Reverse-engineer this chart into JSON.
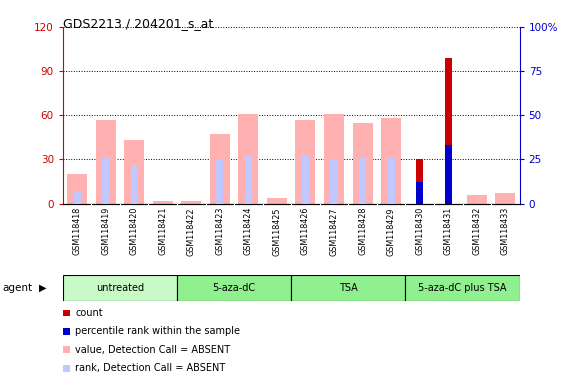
{
  "title": "GDS2213 / 204201_s_at",
  "samples": [
    "GSM118418",
    "GSM118419",
    "GSM118420",
    "GSM118421",
    "GSM118422",
    "GSM118423",
    "GSM118424",
    "GSM118425",
    "GSM118426",
    "GSM118427",
    "GSM118428",
    "GSM118429",
    "GSM118430",
    "GSM118431",
    "GSM118432",
    "GSM118433"
  ],
  "group_data": [
    {
      "name": "untreated",
      "start": 0,
      "end": 4,
      "color": "#c8fac8"
    },
    {
      "name": "5-aza-dC",
      "start": 4,
      "end": 8,
      "color": "#90f090"
    },
    {
      "name": "TSA",
      "start": 8,
      "end": 12,
      "color": "#90f090"
    },
    {
      "name": "5-aza-dC plus TSA",
      "start": 12,
      "end": 16,
      "color": "#90f090"
    }
  ],
  "pink_bars": [
    20,
    57,
    43,
    1.5,
    1.5,
    47,
    61,
    4,
    57,
    61,
    55,
    58,
    0,
    0,
    6,
    7
  ],
  "light_blue_bars": [
    7,
    26,
    22,
    0,
    0,
    25,
    27,
    0,
    27,
    25,
    26,
    26,
    0,
    33,
    0,
    0
  ],
  "red_bars": [
    0,
    0,
    0,
    0,
    0,
    0,
    0,
    0,
    0,
    0,
    0,
    0,
    30,
    99,
    0,
    0
  ],
  "blue_bars": [
    0,
    0,
    0,
    0,
    0,
    0,
    0,
    0,
    0,
    0,
    0,
    0,
    12,
    33,
    0,
    0
  ],
  "ylim_left": [
    0,
    120
  ],
  "ylim_right": [
    0,
    100
  ],
  "yticks_left": [
    0,
    30,
    60,
    90,
    120
  ],
  "yticks_right": [
    0,
    25,
    50,
    75,
    100
  ],
  "yticklabels_right": [
    "0",
    "25",
    "50",
    "75",
    "100%"
  ],
  "left_axis_color": "#cc0000",
  "right_axis_color": "#0000cc",
  "legend": [
    {
      "label": "count",
      "color": "#cc0000"
    },
    {
      "label": "percentile rank within the sample",
      "color": "#0000cc"
    },
    {
      "label": "value, Detection Call = ABSENT",
      "color": "#ffb0b0"
    },
    {
      "label": "rank, Detection Call = ABSENT",
      "color": "#c0c8ff"
    }
  ]
}
